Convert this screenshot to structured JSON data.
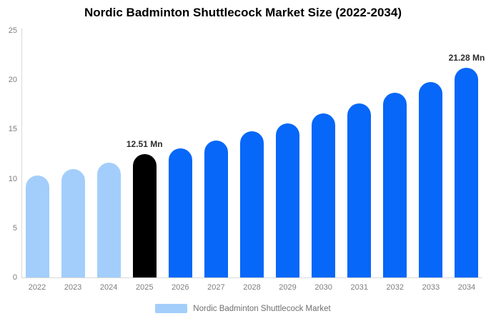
{
  "title": "Nordic Badminton Shuttlecock Market Size (2022-2034)",
  "chart_data": {
    "type": "bar",
    "categories": [
      "2022",
      "2023",
      "2024",
      "2025",
      "2026",
      "2027",
      "2028",
      "2029",
      "2030",
      "2031",
      "2032",
      "2033",
      "2034"
    ],
    "values": [
      10.3,
      11.0,
      11.6,
      12.51,
      13.1,
      13.9,
      14.8,
      15.6,
      16.6,
      17.6,
      18.7,
      19.8,
      21.28
    ],
    "value_unit": "Mn",
    "point_labels": {
      "2025": "12.51 Mn",
      "2034": "21.28 Mn"
    },
    "bar_roles": [
      "historical",
      "historical",
      "historical",
      "current",
      "forecast",
      "forecast",
      "forecast",
      "forecast",
      "forecast",
      "forecast",
      "forecast",
      "forecast",
      "forecast"
    ],
    "palette": {
      "historical": "#a3cefb",
      "current": "#000000",
      "forecast": "#0667f8"
    },
    "ylim": [
      0,
      25
    ],
    "yticks": [
      0,
      5,
      10,
      15,
      20,
      25
    ],
    "grid": false,
    "legend": {
      "label": "Nordic Badminton Shuttlecock Market",
      "swatch_color": "#a3cefb",
      "position": "bottom"
    }
  }
}
